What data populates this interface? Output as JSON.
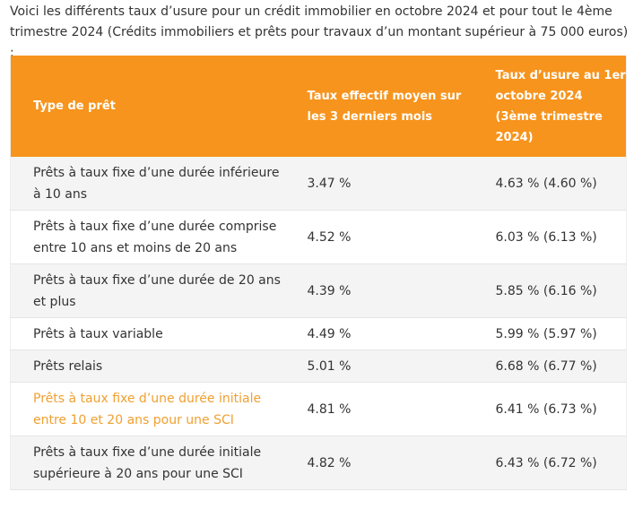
{
  "intro": {
    "text": "Voici les différents taux d’usure pour un crédit immobilier en octobre 2024 et pour tout le 4ème trimestre 2024 (Crédits immobiliers et prêts pour travaux d’un montant supérieur à 75 000 euros) :"
  },
  "table": {
    "headers": {
      "type": "Type de prêt",
      "taux_effectif": "Taux effectif moyen sur les 3 derniers mois",
      "taux_usure": "Taux d’usure au 1er octobre 2024 (3ème trimestre 2024)"
    },
    "colors": {
      "header_bg": "#f7941d",
      "header_text": "#ffffff",
      "row_alt_bg": "#f4f4f4",
      "highlight_text": "#f0a030"
    },
    "rows": [
      {
        "type": "Prêts à taux fixe d’une durée inférieure à 10 ans",
        "taux_effectif": "3.47 %",
        "taux_usure": "4.63 % (4.60 %)"
      },
      {
        "type": "Prêts à taux fixe d’une durée comprise entre 10 ans et moins de 20 ans",
        "taux_effectif": "4.52 %",
        "taux_usure": "6.03 % (6.13 %)"
      },
      {
        "type": "Prêts à taux fixe d’une durée de 20 ans et plus",
        "taux_effectif": "4.39 %",
        "taux_usure": "5.85 % (6.16 %)"
      },
      {
        "type": "Prêts à taux variable",
        "taux_effectif": "4.49 %",
        "taux_usure": "5.99 % (5.97 %)"
      },
      {
        "type": "Prêts relais",
        "taux_effectif": "5.01 %",
        "taux_usure": "6.68 % (6.77 %)"
      },
      {
        "type": "Prêts à taux fixe d’une durée initiale entre 10 et 20 ans pour une SCI",
        "taux_effectif": "4.81 %",
        "taux_usure": "6.41 % (6.73 %)"
      },
      {
        "type": "Prêts à taux fixe d’une durée initiale supérieure à 20 ans pour une SCI",
        "taux_effectif": "4.82 %",
        "taux_usure": "6.43 % (6.72 %)"
      }
    ]
  }
}
